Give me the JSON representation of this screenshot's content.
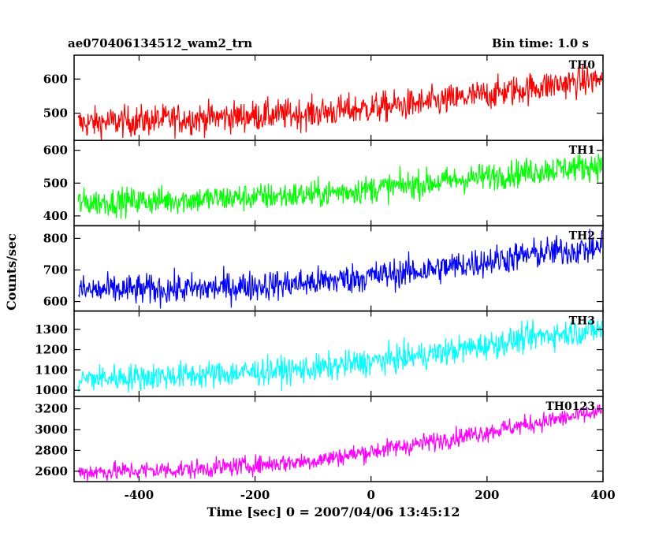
{
  "header": {
    "title": "ae070406134512_wam2_trn",
    "bin_time": "Bin time: 1.0 s"
  },
  "chart_data": {
    "type": "line",
    "xlabel": "Time [sec] 0 = 2007/04/06 13:45:12",
    "ylabel": "Counts/sec",
    "xlim": [
      -512,
      400
    ],
    "x_ticks": [
      -400,
      -200,
      0,
      200,
      400
    ],
    "x_step_s": 1,
    "grid": false,
    "panels": [
      {
        "name": "TH0",
        "color": "#ff0000",
        "ylim": [
          420,
          670
        ],
        "y_ticks": [
          500,
          600
        ],
        "trend": [
          [
            -505,
            470
          ],
          [
            -300,
            485
          ],
          [
            -100,
            500
          ],
          [
            100,
            530
          ],
          [
            300,
            580
          ],
          [
            398,
            600
          ]
        ],
        "noise": 30
      },
      {
        "name": "TH1",
        "color": "#00ff00",
        "ylim": [
          370,
          630
        ],
        "y_ticks": [
          400,
          500,
          600
        ],
        "trend": [
          [
            -505,
            440
          ],
          [
            -300,
            450
          ],
          [
            -100,
            465
          ],
          [
            100,
            500
          ],
          [
            300,
            540
          ],
          [
            398,
            555
          ]
        ],
        "noise": 28
      },
      {
        "name": "TH2",
        "color": "#0000ff",
        "ylim": [
          570,
          840
        ],
        "y_ticks": [
          600,
          700,
          800
        ],
        "trend": [
          [
            -505,
            635
          ],
          [
            -300,
            640
          ],
          [
            -100,
            660
          ],
          [
            100,
            700
          ],
          [
            300,
            755
          ],
          [
            398,
            770
          ]
        ],
        "noise": 32
      },
      {
        "name": "TH3",
        "color": "#00ffff",
        "ylim": [
          970,
          1390
        ],
        "y_ticks": [
          1000,
          1100,
          1200,
          1300
        ],
        "trend": [
          [
            -505,
            1055
          ],
          [
            -300,
            1075
          ],
          [
            -100,
            1105
          ],
          [
            100,
            1175
          ],
          [
            300,
            1270
          ],
          [
            398,
            1300
          ]
        ],
        "noise": 45
      },
      {
        "name": "TH0123",
        "color": "#ff00ff",
        "ylim": [
          2500,
          3320
        ],
        "y_ticks": [
          2600,
          2800,
          3000,
          3200
        ],
        "trend": [
          [
            -505,
            2590
          ],
          [
            -300,
            2620
          ],
          [
            -100,
            2700
          ],
          [
            100,
            2880
          ],
          [
            300,
            3080
          ],
          [
            398,
            3170
          ]
        ],
        "noise": 60
      }
    ]
  }
}
